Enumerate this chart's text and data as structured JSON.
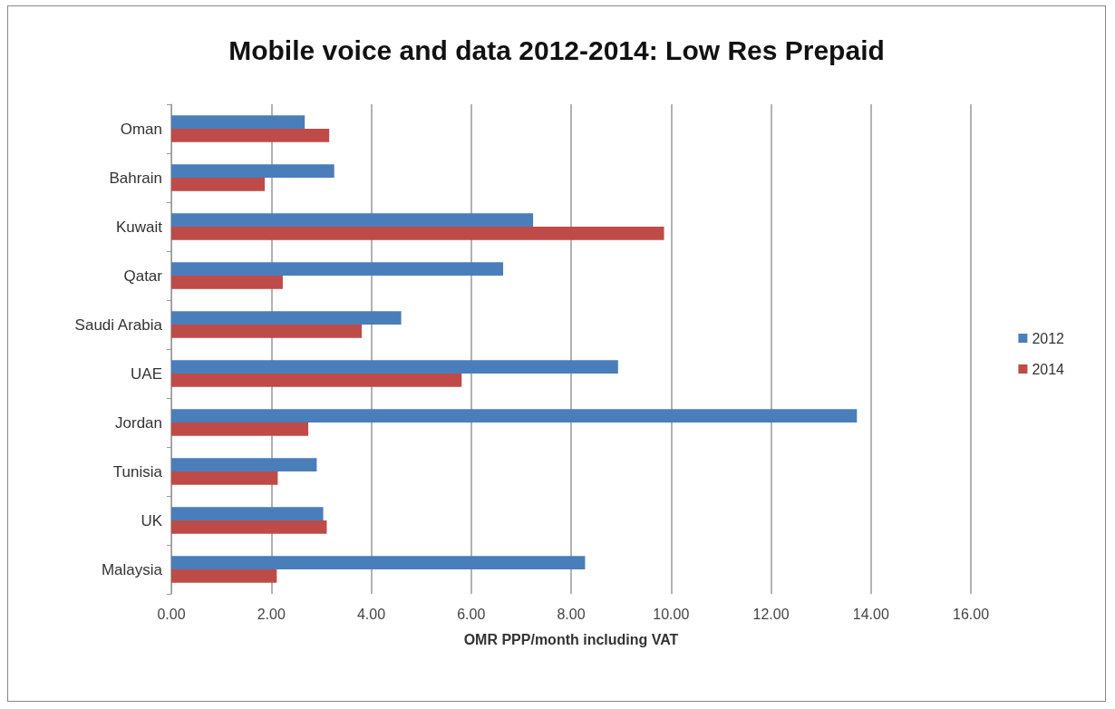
{
  "chart_data": {
    "type": "bar",
    "orientation": "horizontal",
    "title": "Mobile voice and data 2012-2014: Low Res Prepaid",
    "xlabel": "OMR PPP/month including VAT",
    "categories": [
      "Oman",
      "Bahrain",
      "Kuwait",
      "Qatar",
      "Saudi Arabia",
      "UAE",
      "Jordan",
      "Tunisia",
      "UK",
      "Malaysia"
    ],
    "series": [
      {
        "name": "2012",
        "color": "#4a7ebb",
        "values": [
          2.67,
          3.26,
          7.24,
          6.64,
          4.6,
          8.94,
          13.72,
          2.91,
          3.04,
          8.28
        ]
      },
      {
        "name": "2014",
        "color": "#be4b48",
        "values": [
          3.16,
          1.87,
          9.86,
          2.23,
          3.81,
          5.81,
          2.74,
          2.13,
          3.11,
          2.11
        ]
      }
    ],
    "xlim": [
      0,
      16
    ],
    "xticks": [
      {
        "value": 0,
        "label": "0.00"
      },
      {
        "value": 2,
        "label": "2.00"
      },
      {
        "value": 4,
        "label": "4.00"
      },
      {
        "value": 6,
        "label": "6.00"
      },
      {
        "value": 8,
        "label": "8.00"
      },
      {
        "value": 10,
        "label": "10.00"
      },
      {
        "value": 12,
        "label": "12.00"
      },
      {
        "value": 14,
        "label": "14.00"
      },
      {
        "value": 16,
        "label": "16.00"
      }
    ],
    "grid": "x",
    "legend": "right"
  }
}
